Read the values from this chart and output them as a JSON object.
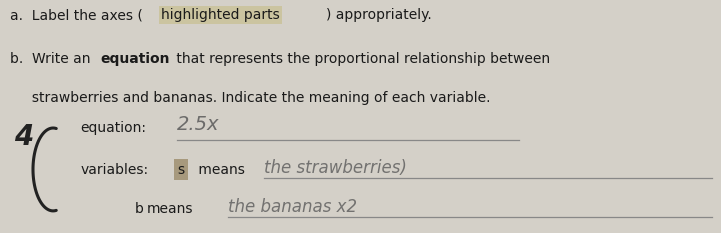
{
  "background_color": "#d4d0c8",
  "text_color": "#1a1a1a",
  "line_a1": "a.  Label the axes (",
  "line_a2": "highlighted parts",
  "line_a3": ") appropriately.",
  "line_b1": "b.  Write an ",
  "line_b2": "equation",
  "line_b3": " that represents the proportional relationship between",
  "line_c": "     strawberries and bananas. Indicate the meaning of each variable.",
  "label_4": "4",
  "eq_label": "equation:",
  "eq_answer": "2.5x",
  "var_label": "variables:",
  "s_label": "s",
  "s_means": " means",
  "s_answer": "the strawberries)",
  "b_label": "b",
  "b_means": "means",
  "b_answer": "the bananas x2",
  "highlight_box_color": "#c8c090",
  "s_highlight_color": "#a09070",
  "hand_color": "#5a5a5a",
  "line_color": "#888888",
  "bracket_color": "#222222"
}
